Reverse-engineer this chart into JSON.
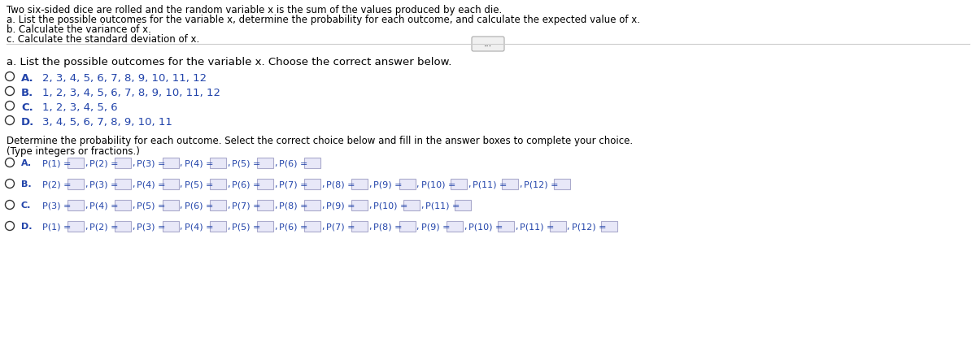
{
  "bg_color": "#ffffff",
  "text_color": "#000000",
  "blue_color": "#2244aa",
  "header_lines": [
    "Two six-sided dice are rolled and the random variable x is the sum of the values produced by each die.",
    "a. List the possible outcomes for the variable x, determine the probability for each outcome, and calculate the expected value of x.",
    "b. Calculate the variance of x.",
    "c. Calculate the standard deviation of x."
  ],
  "section_a_label": "a. List the possible outcomes for the variable x. Choose the correct answer below.",
  "choices_outcomes": [
    [
      "A.",
      "2, 3, 4, 5, 6, 7, 8, 9, 10, 11, 12"
    ],
    [
      "B.",
      "1, 2, 3, 4, 5, 6, 7, 8, 9, 10, 11, 12"
    ],
    [
      "C.",
      "1, 2, 3, 4, 5, 6"
    ],
    [
      "D.",
      "3, 4, 5, 6, 7, 8, 9, 10, 11"
    ]
  ],
  "prob_instruction": "Determine the probability for each outcome. Select the correct choice below and fill in the answer boxes to complete your choice.",
  "prob_type_note": "(Type integers or fractions.)",
  "prob_choices": [
    {
      "letter": "A.",
      "items": [
        "P(1) =",
        "P(2) =",
        "P(3) =",
        "P(4) =",
        "P(5) =",
        "P(6) ="
      ]
    },
    {
      "letter": "B.",
      "items": [
        "P(2) =",
        "P(3) =",
        "P(4) =",
        "P(5) =",
        "P(6) =",
        "P(7) =",
        "P(8) =",
        "P(9) =",
        "P(10) =",
        "P(11) =",
        "P(12) ="
      ]
    },
    {
      "letter": "C.",
      "items": [
        "P(3) =",
        "P(4) =",
        "P(5) =",
        "P(6) =",
        "P(7) =",
        "P(8) =",
        "P(9) =",
        "P(10) =",
        "P(11) ="
      ]
    },
    {
      "letter": "D.",
      "items": [
        "P(1) =",
        "P(2) =",
        "P(3) =",
        "P(4) =",
        "P(5) =",
        "P(6) =",
        "P(7) =",
        "P(8) =",
        "P(9) =",
        "P(10) =",
        "P(11) =",
        "P(12) ="
      ]
    }
  ],
  "header_fontsize": 8.5,
  "body_fontsize": 9.5,
  "prob_fontsize": 8.5,
  "choice_fontsize": 9.5
}
